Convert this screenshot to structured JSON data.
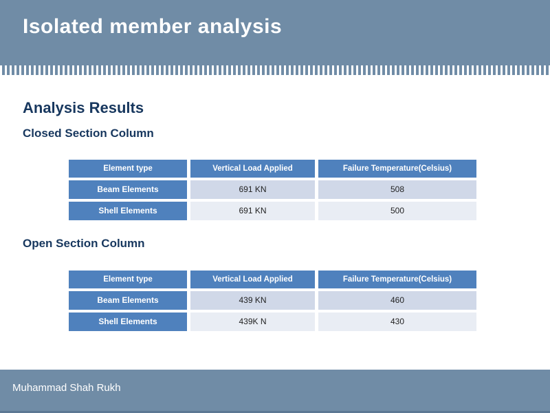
{
  "slide": {
    "title": "Isolated member analysis",
    "footer_name": "Muhammad Shah Rukh"
  },
  "headings": {
    "main": "Analysis Results",
    "closed_section": "Closed Section Column",
    "open_section": "Open Section Column"
  },
  "tables": {
    "columns": [
      "Element type",
      "Vertical Load Applied",
      "Failure Temperature(Celsius)"
    ],
    "closed": {
      "rows": [
        [
          "Beam Elements",
          "691 KN",
          "508"
        ],
        [
          "Shell Elements",
          "691 KN",
          "500"
        ]
      ]
    },
    "open": {
      "rows": [
        [
          "Beam Elements",
          "439 KN",
          "460"
        ],
        [
          "Shell Elements",
          "439K N",
          "430"
        ]
      ]
    }
  },
  "colors": {
    "bar_background": "#708ca6",
    "table_accent": "#4f81bd",
    "band_light": "#d0d8e8",
    "band_lighter": "#e9edf4",
    "heading_navy": "#17375e",
    "tick_white": "#ffffff",
    "bottom_edge": "#5c7893"
  }
}
